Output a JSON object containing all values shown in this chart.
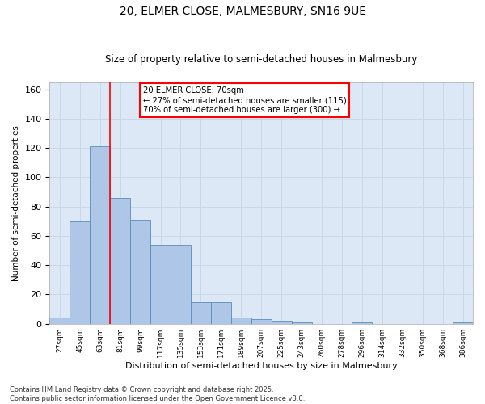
{
  "title1": "20, ELMER CLOSE, MALMESBURY, SN16 9UE",
  "title2": "Size of property relative to semi-detached houses in Malmesbury",
  "xlabel": "Distribution of semi-detached houses by size in Malmesbury",
  "ylabel": "Number of semi-detached properties",
  "bin_labels": [
    "27sqm",
    "45sqm",
    "63sqm",
    "81sqm",
    "99sqm",
    "117sqm",
    "135sqm",
    "153sqm",
    "171sqm",
    "189sqm",
    "207sqm",
    "225sqm",
    "243sqm",
    "260sqm",
    "278sqm",
    "296sqm",
    "314sqm",
    "332sqm",
    "350sqm",
    "368sqm",
    "386sqm"
  ],
  "bar_heights": [
    4,
    70,
    121,
    86,
    71,
    54,
    54,
    15,
    15,
    4,
    3,
    2,
    1,
    0,
    0,
    1,
    0,
    0,
    0,
    0,
    1
  ],
  "bar_color": "#aec6e8",
  "bar_edge_color": "#5b8db8",
  "ylim": [
    0,
    165
  ],
  "yticks": [
    0,
    20,
    40,
    60,
    80,
    100,
    120,
    140,
    160
  ],
  "property_label": "20 ELMER CLOSE: 70sqm",
  "pct_smaller": 27,
  "n_smaller": 115,
  "pct_larger": 70,
  "n_larger": 300,
  "footer": "Contains HM Land Registry data © Crown copyright and database right 2025.\nContains public sector information licensed under the Open Government Licence v3.0.",
  "grid_color": "#c8d8e8",
  "background_color": "#dce8f5"
}
